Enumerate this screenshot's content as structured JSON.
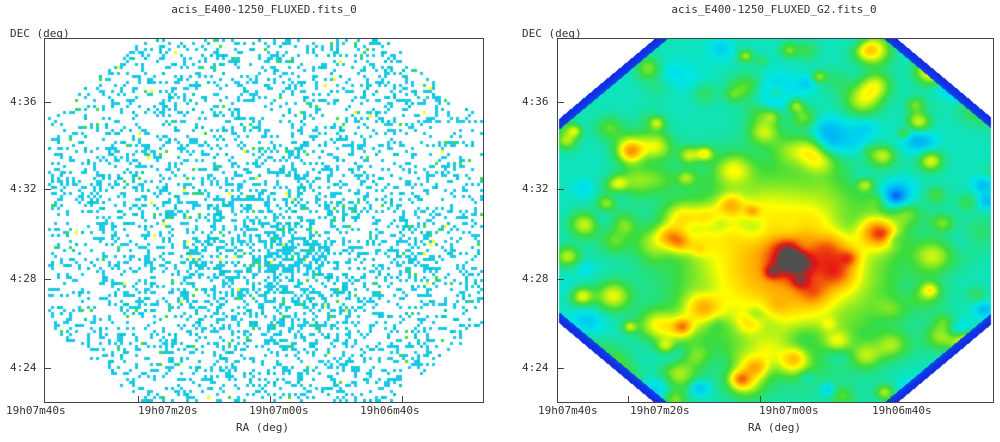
{
  "chart_data": [
    {
      "type": "heatmap",
      "title": "acis_E400-1250_FLUXED.fits_0",
      "xlabel": "RA (deg)",
      "ylabel": "DEC (deg)",
      "x_ticks": [
        "19h07m40s",
        "19h07m20s",
        "19h07m00s",
        "19h06m40s"
      ],
      "y_ticks": [
        "4:36",
        "4:32",
        "4:28",
        "4:24"
      ],
      "style": "sparse",
      "colormap": [
        "#ffffff",
        "#19c8e6",
        "#00c8c8",
        "#3cdc3c",
        "#ffff00"
      ],
      "grid": false
    },
    {
      "type": "heatmap",
      "title": "acis_E400-1250_FLUXED_G2.fits_0",
      "xlabel": "RA (deg)",
      "ylabel": "DEC (deg)",
      "x_ticks": [
        "19h07m40s",
        "19h07m20s",
        "19h07m00s",
        "19h06m40s"
      ],
      "y_ticks": [
        "4:36",
        "4:32",
        "4:28",
        "4:24"
      ],
      "style": "smoothed",
      "colormap": [
        "#1414dc",
        "#0096ff",
        "#00e6e6",
        "#3cdc3c",
        "#ffff00",
        "#ffa000",
        "#e61414",
        "#505050"
      ],
      "grid": false
    }
  ]
}
